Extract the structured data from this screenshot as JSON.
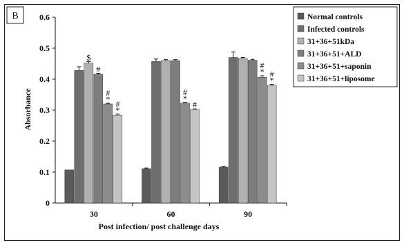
{
  "chart_data": {
    "type": "bar",
    "panel_label": "B",
    "xlabel": "Post infection/ post challenge days",
    "ylabel": "Absorbance",
    "ylim": [
      0,
      0.6
    ],
    "yticks": [
      "0",
      "0.1",
      "0.2",
      "0.3",
      "0.4",
      "0.5",
      "0.6"
    ],
    "categories": [
      "30",
      "60",
      "90"
    ],
    "grid": false,
    "legend_position": "top-right",
    "series": [
      {
        "name": "Normal controls",
        "color": "#5a5a5a",
        "values": [
          0.107,
          0.111,
          0.116
        ],
        "errors": [
          0.0,
          0.002,
          0.002
        ],
        "marks": [
          "",
          "",
          ""
        ]
      },
      {
        "name": "Infected controls",
        "color": "#6e6e6e",
        "values": [
          0.428,
          0.457,
          0.47
        ],
        "errors": [
          0.012,
          0.008,
          0.018
        ],
        "marks": [
          "",
          "",
          ""
        ]
      },
      {
        "name": "31+36+51kDa",
        "color": "#b0b0b0",
        "values": [
          0.452,
          0.46,
          0.467
        ],
        "errors": [
          0.005,
          0.003,
          0.003
        ],
        "marks": [
          "$",
          "",
          ""
        ]
      },
      {
        "name": "31+36+51+ALD",
        "color": "#7d7d7d",
        "values": [
          0.416,
          0.46,
          0.461
        ],
        "errors": [
          0.003,
          0.003,
          0.003
        ],
        "marks": [
          "#",
          "",
          ""
        ]
      },
      {
        "name": "31+36+51+saponin",
        "color": "#8c8c8c",
        "values": [
          0.32,
          0.323,
          0.406
        ],
        "errors": [
          0.002,
          0.002,
          0.005
        ],
        "marks": [
          "#*",
          "#*",
          "#*"
        ]
      },
      {
        "name": "31+36+51+liposome",
        "color": "#c4c4c4",
        "values": [
          0.284,
          0.302,
          0.38
        ],
        "errors": [
          0.003,
          0.002,
          0.003
        ],
        "marks": [
          "#*",
          "#",
          "#*"
        ]
      }
    ]
  }
}
